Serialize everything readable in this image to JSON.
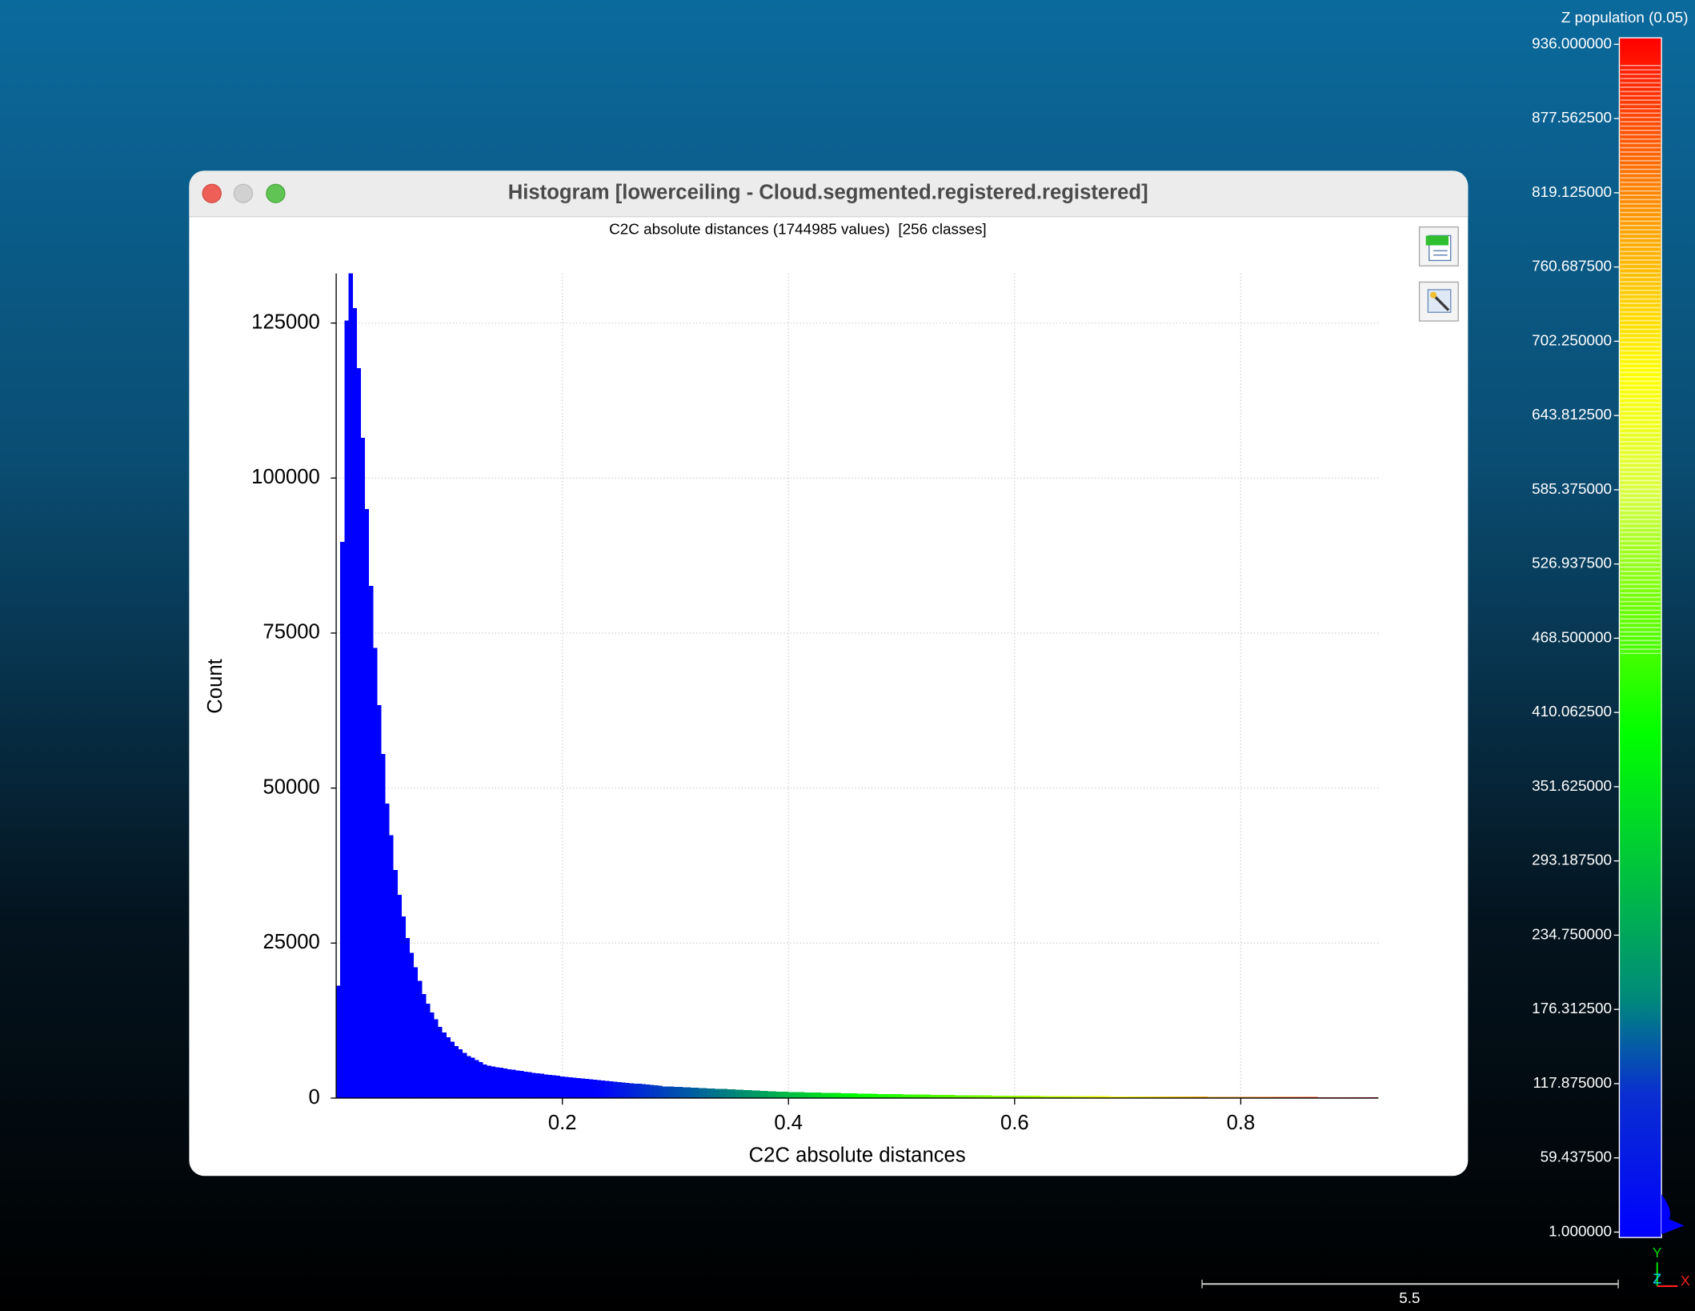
{
  "window": {
    "title": "Histogram [lowerceiling - Cloud.segmented.registered.registered]"
  },
  "chart_data": {
    "type": "histogram",
    "title": "C2C absolute distances (1744985 values)  [256 classes]",
    "x_label": "C2C absolute distances",
    "y_label": "Count",
    "bins": [
      0,
      0.0036,
      0.0072,
      0.0108,
      0.0144,
      0.018,
      0.0216,
      0.0252,
      0.0288,
      0.0324,
      0.036,
      0.0396,
      0.0432,
      0.0468,
      0.0504,
      0.054,
      0.0576,
      0.0612,
      0.0648,
      0.0684,
      0.072,
      0.0756,
      0.0792,
      0.0828,
      0.0864,
      0.09,
      0.0936,
      0.0972,
      0.1008,
      0.1044,
      0.108,
      0.1116,
      0.1152,
      0.1188,
      0.1224,
      0.126,
      0.1296,
      0.1332,
      0.1368,
      0.1404,
      0.144,
      0.1476,
      0.1512,
      0.1548,
      0.1584,
      0.162,
      0.1656,
      0.1692,
      0.1728,
      0.1764,
      0.18,
      0.1836,
      0.1872,
      0.1908,
      0.1944,
      0.198,
      0.2016,
      0.2052,
      0.2088,
      0.2124,
      0.216,
      0.2196,
      0.2232,
      0.2268,
      0.2304,
      0.234,
      0.2376,
      0.2412,
      0.2448,
      0.2484,
      0.252,
      0.2556,
      0.2592,
      0.2628,
      0.2664,
      0.27,
      0.2736,
      0.2772,
      0.2808,
      0.2844,
      0.288,
      0.2916,
      0.2952,
      0.2988,
      0.3024,
      0.306,
      0.3096,
      0.3132,
      0.3168,
      0.3204,
      0.324,
      0.3276,
      0.3312,
      0.3348,
      0.3384,
      0.342,
      0.3456,
      0.3492,
      0.3528,
      0.3564,
      0.36,
      0.3636,
      0.3672,
      0.3708,
      0.3744,
      0.378,
      0.3816,
      0.3852,
      0.3888,
      0.3924,
      0.396,
      0.3996,
      0.4032,
      0.4068,
      0.4104,
      0.414,
      0.4176,
      0.4212,
      0.4248,
      0.4284,
      0.432,
      0.4356,
      0.4392,
      0.4428,
      0.4464,
      0.45,
      0.4536,
      0.4572,
      0.4608,
      0.4644,
      0.468,
      0.4716,
      0.4752,
      0.4788,
      0.4824,
      0.486,
      0.4896,
      0.4932,
      0.4968,
      0.5004,
      0.504,
      0.5076,
      0.5112,
      0.5148,
      0.5184,
      0.522,
      0.5256,
      0.5292,
      0.5328,
      0.5364,
      0.54,
      0.5436,
      0.5472,
      0.5508,
      0.5544,
      0.558,
      0.5616,
      0.5652,
      0.5688,
      0.5724,
      0.576,
      0.5796,
      0.5832,
      0.5868,
      0.5904,
      0.594,
      0.5976,
      0.6012,
      0.6048,
      0.6084,
      0.612,
      0.6156,
      0.6192,
      0.6228,
      0.6264,
      0.63,
      0.6336,
      0.6372,
      0.6408,
      0.6444,
      0.648,
      0.6516,
      0.6552,
      0.6588,
      0.6624,
      0.666,
      0.6696,
      0.6732,
      0.6768,
      0.6804,
      0.684,
      0.6876,
      0.6912,
      0.6948,
      0.6984,
      0.702,
      0.7056,
      0.7092,
      0.7128,
      0.7164,
      0.72,
      0.7236,
      0.7272,
      0.7308,
      0.7344,
      0.738,
      0.7416,
      0.7452,
      0.7488,
      0.7524,
      0.756,
      0.7596,
      0.7632,
      0.7668,
      0.7704,
      0.774,
      0.7776,
      0.7812,
      0.7848,
      0.7884,
      0.792,
      0.7956,
      0.7992,
      0.8028,
      0.8064,
      0.81,
      0.8136,
      0.8172,
      0.8208,
      0.8244,
      0.828,
      0.8316,
      0.8352,
      0.8388,
      0.8424,
      0.846,
      0.8496,
      0.8532,
      0.8568,
      0.8604,
      0.864,
      0.8676,
      0.8712,
      0.8748,
      0.8784,
      0.882,
      0.8856,
      0.8892,
      0.8928,
      0.8964,
      0.9,
      0.9036,
      0.9072,
      0.9108,
      0.9144,
      0.918,
      0.9216
    ],
    "values": [
      18150,
      89700,
      125400,
      133000,
      127400,
      117700,
      106500,
      95000,
      82600,
      72600,
      63400,
      55500,
      47500,
      42400,
      36800,
      32800,
      29300,
      25800,
      23400,
      21100,
      18900,
      16800,
      15200,
      13800,
      12700,
      11500,
      10600,
      9800,
      9100,
      8400,
      7900,
      7300,
      6800,
      6500,
      6100,
      5800,
      5400,
      5200,
      5090,
      4980,
      4870,
      4760,
      4660,
      4560,
      4460,
      4360,
      4270,
      4180,
      4090,
      4000,
      3910,
      3830,
      3750,
      3670,
      3590,
      3500,
      3430,
      3360,
      3290,
      3220,
      3150,
      3080,
      3010,
      2950,
      2890,
      2830,
      2770,
      2710,
      2650,
      2590,
      2530,
      2470,
      2410,
      2350,
      2300,
      2250,
      2190,
      2120,
      2050,
      1980,
      1900,
      1870,
      1840,
      1810,
      1780,
      1750,
      1720,
      1690,
      1660,
      1630,
      1600,
      1570,
      1540,
      1510,
      1480,
      1450,
      1420,
      1390,
      1360,
      1330,
      1300,
      1270,
      1240,
      1210,
      1180,
      1150,
      1120,
      1090,
      1060,
      1030,
      1000,
      985,
      970,
      955,
      940,
      925,
      910,
      895,
      880,
      865,
      850,
      835,
      820,
      805,
      790,
      775,
      760,
      745,
      730,
      715,
      700,
      690,
      680,
      670,
      660,
      650,
      640,
      630,
      620,
      610,
      600,
      590,
      580,
      570,
      560,
      550,
      540,
      530,
      520,
      510,
      500,
      490,
      480,
      470,
      460,
      450,
      445,
      440,
      435,
      430,
      420,
      410,
      400,
      395,
      390,
      385,
      380,
      376,
      372,
      368,
      364,
      360,
      356,
      352,
      348,
      344,
      340,
      336,
      332,
      328,
      324,
      320,
      316,
      312,
      308,
      304,
      300,
      296,
      292,
      288,
      284,
      280,
      276,
      272,
      268,
      264,
      260,
      257,
      254,
      252,
      250,
      248,
      246,
      244,
      242,
      240,
      238,
      236,
      234,
      232,
      230,
      228,
      226,
      224,
      222,
      220,
      218,
      216,
      214,
      212,
      210,
      208,
      206,
      205,
      204,
      203,
      202,
      201,
      200,
      200,
      200,
      196,
      192,
      188,
      184,
      180,
      176,
      172,
      168,
      164,
      160,
      156,
      152,
      148,
      144,
      140,
      138,
      136,
      134,
      132,
      130,
      128,
      126,
      124,
      122,
      120
    ],
    "xlim": [
      0,
      0.9216
    ],
    "ylim": [
      0,
      133000
    ],
    "xticks": [
      0.2,
      0.4,
      0.6,
      0.8
    ],
    "yticks": [
      0,
      25000,
      50000,
      75000,
      100000,
      125000
    ],
    "grid": true,
    "colormap": [
      "#0000ff",
      "#0000ff",
      "#00ff00",
      "#ffff00",
      "#ff0000"
    ]
  },
  "color_scale": {
    "title": "Z population (0.05)",
    "labels": [
      "936.000000",
      "877.562500",
      "819.125000",
      "760.687500",
      "702.250000",
      "643.812500",
      "585.375000",
      "526.937500",
      "468.500000",
      "410.062500",
      "351.625000",
      "293.187500",
      "234.750000",
      "176.312500",
      "117.875000",
      "59.437500",
      "1.000000"
    ]
  },
  "scale_bar": {
    "label": "5.5"
  },
  "axes_triad": {
    "y": "Y",
    "z": "Z",
    "x": "X"
  }
}
